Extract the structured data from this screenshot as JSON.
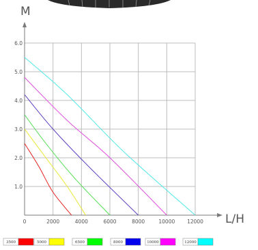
{
  "chart_data": {
    "type": "line",
    "title": "",
    "xlabel": "L/H",
    "ylabel": "M",
    "xlim": [
      0,
      12000
    ],
    "ylim": [
      0,
      6.0
    ],
    "x_ticks": [
      "0",
      "2000",
      "4000",
      "6000",
      "8000",
      "10000",
      "12000"
    ],
    "y_ticks": [
      "1.0",
      "2.0",
      "3.0",
      "4.0",
      "5.0",
      "6.0"
    ],
    "grid": true,
    "legend_position": "bottom",
    "series": [
      {
        "name": "3500",
        "color": "#e82020",
        "legend_color": "#ff0000",
        "points": [
          [
            0,
            2.5
          ],
          [
            1000,
            1.7
          ],
          [
            2000,
            0.8
          ],
          [
            3300,
            0
          ]
        ]
      },
      {
        "name": "5000",
        "color": "#e8e830",
        "legend_color": "#ffff00",
        "points": [
          [
            0,
            3.0
          ],
          [
            1500,
            2.0
          ],
          [
            3000,
            1.0
          ],
          [
            4300,
            0
          ]
        ]
      },
      {
        "name": "6500",
        "color": "#50dd50",
        "legend_color": "#00ff00",
        "points": [
          [
            0,
            3.5
          ],
          [
            1500,
            2.5
          ],
          [
            3500,
            1.3
          ],
          [
            6000,
            0
          ]
        ]
      },
      {
        "name": "8000",
        "color": "#6040c0",
        "legend_color": "#0000ee",
        "points": [
          [
            0,
            4.2
          ],
          [
            2000,
            3.0
          ],
          [
            4500,
            1.7
          ],
          [
            8000,
            0
          ]
        ]
      },
      {
        "name": "10000",
        "color": "#e050e0",
        "legend_color": "#ff00ff",
        "points": [
          [
            0,
            4.8
          ],
          [
            3000,
            3.3
          ],
          [
            6000,
            2.0
          ],
          [
            10000,
            0
          ]
        ]
      },
      {
        "name": "12000",
        "color": "#50e8e8",
        "legend_color": "#00ffff",
        "points": [
          [
            0,
            5.5
          ],
          [
            3000,
            4.2
          ],
          [
            7000,
            2.2
          ],
          [
            12000,
            0
          ]
        ]
      }
    ]
  }
}
